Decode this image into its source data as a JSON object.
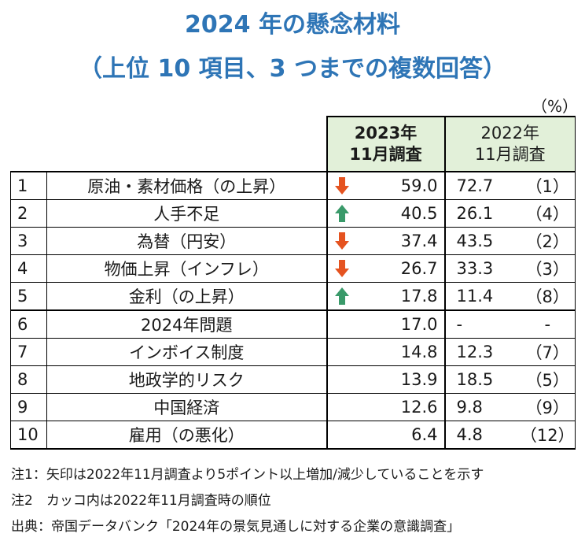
{
  "title_line1": "2024 年の懸念材料",
  "title_line2": "（上位 10 項目、3 つまでの複数回答）",
  "unit": "（%）",
  "headers": {
    "col2023": "2023年\n11月調査",
    "col2022": "2022年\n11月調査"
  },
  "rows": [
    {
      "rank": "1",
      "item": "原油・素材価格（の上昇）",
      "arrow": "down",
      "v2023": "59.0",
      "v2022": "72.7",
      "r2022": "（1）"
    },
    {
      "rank": "2",
      "item": "人手不足",
      "arrow": "up",
      "v2023": "40.5",
      "v2022": "26.1",
      "r2022": "（4）"
    },
    {
      "rank": "3",
      "item": "為替（円安）",
      "arrow": "down",
      "v2023": "37.4",
      "v2022": "43.5",
      "r2022": "（2）"
    },
    {
      "rank": "4",
      "item": "物価上昇（インフレ）",
      "arrow": "down",
      "v2023": "26.7",
      "v2022": "33.3",
      "r2022": "（3）"
    },
    {
      "rank": "5",
      "item": "金利（の上昇）",
      "arrow": "up",
      "v2023": "17.8",
      "v2022": "11.4",
      "r2022": "（8）"
    },
    {
      "rank": "6",
      "item": "2024年問題",
      "arrow": "",
      "v2023": "17.0",
      "v2022": "-",
      "r2022": "-"
    },
    {
      "rank": "7",
      "item": "インボイス制度",
      "arrow": "",
      "v2023": "14.8",
      "v2022": "12.3",
      "r2022": "（7）"
    },
    {
      "rank": "8",
      "item": "地政学的リスク",
      "arrow": "",
      "v2023": "13.9",
      "v2022": "18.5",
      "r2022": "（5）"
    },
    {
      "rank": "9",
      "item": "中国経済",
      "arrow": "",
      "v2023": "12.6",
      "v2022": "9.8",
      "r2022": "（9）"
    },
    {
      "rank": "10",
      "item": "雇用（の悪化）",
      "arrow": "",
      "v2023": "6.4",
      "v2022": "4.8",
      "r2022": "（12）"
    }
  ],
  "notes": [
    "注1：矢印は2022年11月調査より5ポイント以上増加/減少していることを示す",
    "注2　カッコ内は2022年11月調査時の順位",
    "出典：帝国データバンク「2024年の景気見通しに対する企業の意識調査」"
  ],
  "colors": {
    "title": "#2e75b6",
    "down": "#e55320",
    "up": "#3a9a6a",
    "header_bg": "#e2f0d9"
  }
}
